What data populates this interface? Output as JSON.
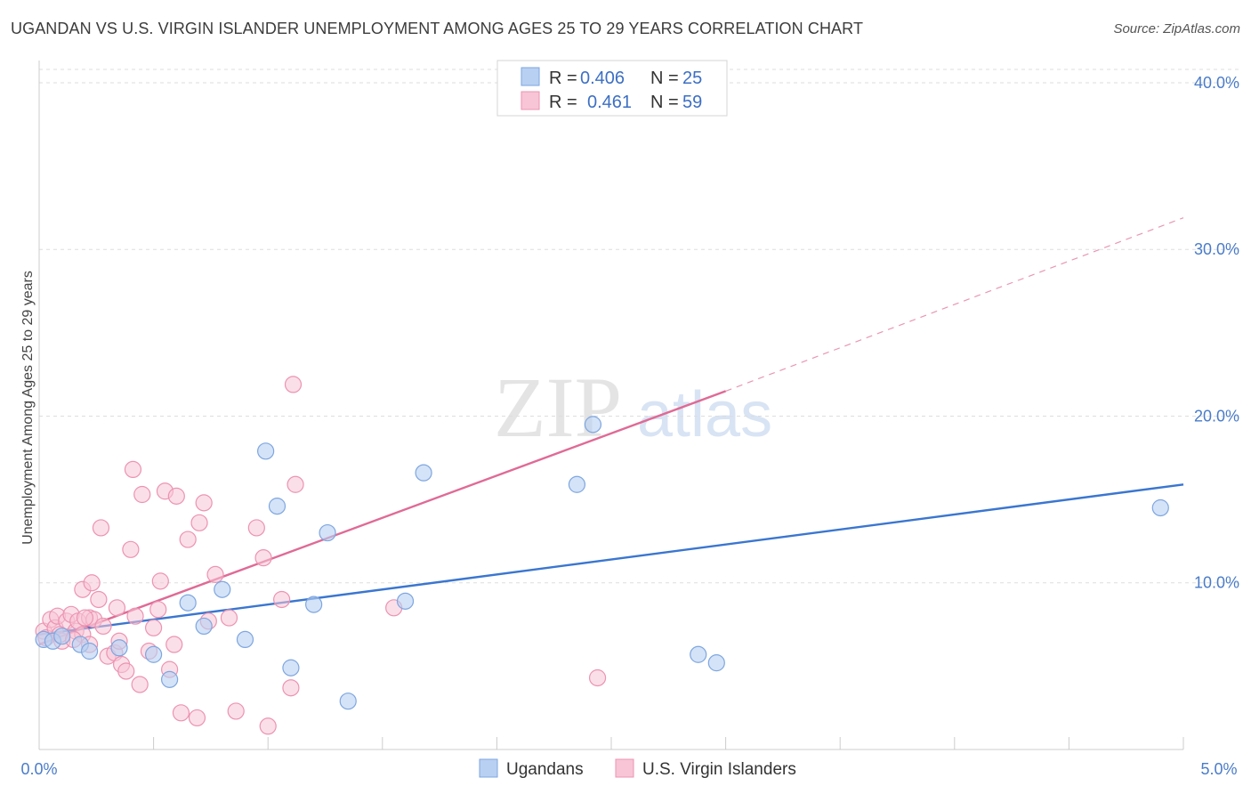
{
  "title": "UGANDAN VS U.S. VIRGIN ISLANDER UNEMPLOYMENT AMONG AGES 25 TO 29 YEARS CORRELATION CHART",
  "source": "Source: ZipAtlas.com",
  "watermark": {
    "zip": "ZIP",
    "atlas": "atlas"
  },
  "colors": {
    "blue_fill": "#b8d0f2",
    "blue_stroke": "#7ea6e0",
    "blue_line": "#3a76d0",
    "pink_fill": "#f8c5d6",
    "pink_stroke": "#ec93b2",
    "pink_line": "#e06a95",
    "tick": "#4a7cc9",
    "grid": "#dddddd"
  },
  "legend": {
    "rows": [
      {
        "r_label": "R =",
        "r_value": "0.406",
        "n_label": "N =",
        "n_value": "25"
      },
      {
        "r_label": "R =",
        "r_value": "0.461",
        "n_label": "N =",
        "n_value": "59"
      }
    ]
  },
  "chart_data": {
    "type": "scatter",
    "title": "UGANDAN VS U.S. VIRGIN ISLANDER UNEMPLOYMENT AMONG AGES 25 TO 29 YEARS CORRELATION CHART",
    "xlabel": "",
    "ylabel": "Unemployment Among Ages 25 to 29 years",
    "xlim": [
      0,
      5
    ],
    "ylim": [
      0,
      40.8
    ],
    "x_tick_labels": [
      "0.0%",
      "5.0%"
    ],
    "y_ticks": [
      10,
      20,
      30,
      40
    ],
    "y_tick_labels": [
      "10.0%",
      "20.0%",
      "30.0%",
      "40.0%"
    ],
    "grid": true,
    "legend_position": "top-center",
    "series": [
      {
        "name": "Ugandans",
        "color": "blue",
        "R": 0.406,
        "N": 25,
        "trend": {
          "x0": 0,
          "y0": 6.9,
          "x1": 5,
          "y1": 15.9
        },
        "points": [
          [
            0.02,
            6.6
          ],
          [
            0.06,
            6.5
          ],
          [
            0.1,
            6.8
          ],
          [
            0.18,
            6.3
          ],
          [
            0.22,
            5.9
          ],
          [
            0.35,
            6.1
          ],
          [
            0.5,
            5.7
          ],
          [
            0.57,
            4.2
          ],
          [
            0.65,
            8.8
          ],
          [
            0.72,
            7.4
          ],
          [
            0.8,
            9.6
          ],
          [
            0.9,
            6.6
          ],
          [
            0.99,
            17.9
          ],
          [
            1.04,
            14.6
          ],
          [
            1.1,
            4.9
          ],
          [
            1.2,
            8.7
          ],
          [
            1.26,
            13.0
          ],
          [
            1.35,
            2.9
          ],
          [
            1.6,
            8.9
          ],
          [
            1.68,
            16.6
          ],
          [
            2.35,
            15.9
          ],
          [
            2.42,
            19.5
          ],
          [
            2.88,
            5.7
          ],
          [
            2.96,
            5.2
          ],
          [
            4.9,
            14.5
          ]
        ]
      },
      {
        "name": "U.S. Virgin Islanders",
        "color": "pink",
        "R": 0.461,
        "N": 59,
        "trend": {
          "x0": 0,
          "y0": 6.3,
          "x1": 3.0,
          "y1": 21.5,
          "dash_to_x": 5,
          "dash_to_y": 31.9
        },
        "points": [
          [
            0.02,
            7.1
          ],
          [
            0.03,
            6.7
          ],
          [
            0.05,
            7.8
          ],
          [
            0.07,
            7.3
          ],
          [
            0.08,
            8.0
          ],
          [
            0.1,
            6.5
          ],
          [
            0.12,
            7.7
          ],
          [
            0.14,
            8.1
          ],
          [
            0.16,
            7.1
          ],
          [
            0.17,
            7.7
          ],
          [
            0.19,
            6.9
          ],
          [
            0.19,
            9.6
          ],
          [
            0.22,
            7.9
          ],
          [
            0.22,
            6.3
          ],
          [
            0.23,
            10.0
          ],
          [
            0.24,
            7.8
          ],
          [
            0.26,
            9.0
          ],
          [
            0.27,
            13.3
          ],
          [
            0.28,
            7.4
          ],
          [
            0.3,
            5.6
          ],
          [
            0.33,
            5.8
          ],
          [
            0.34,
            8.5
          ],
          [
            0.35,
            6.5
          ],
          [
            0.36,
            5.1
          ],
          [
            0.38,
            4.7
          ],
          [
            0.4,
            12.0
          ],
          [
            0.41,
            16.8
          ],
          [
            0.42,
            8.0
          ],
          [
            0.44,
            3.9
          ],
          [
            0.45,
            15.3
          ],
          [
            0.48,
            5.9
          ],
          [
            0.5,
            7.3
          ],
          [
            0.52,
            8.4
          ],
          [
            0.53,
            10.1
          ],
          [
            0.55,
            15.5
          ],
          [
            0.57,
            4.8
          ],
          [
            0.59,
            6.3
          ],
          [
            0.6,
            15.2
          ],
          [
            0.62,
            2.2
          ],
          [
            0.65,
            12.6
          ],
          [
            0.69,
            1.9
          ],
          [
            0.7,
            13.6
          ],
          [
            0.72,
            14.8
          ],
          [
            0.74,
            7.7
          ],
          [
            0.77,
            10.5
          ],
          [
            0.83,
            7.9
          ],
          [
            0.86,
            2.3
          ],
          [
            0.95,
            13.3
          ],
          [
            0.98,
            11.5
          ],
          [
            1.0,
            1.4
          ],
          [
            1.06,
            9.0
          ],
          [
            1.1,
            3.7
          ],
          [
            1.11,
            21.9
          ],
          [
            1.12,
            15.9
          ],
          [
            1.55,
            8.5
          ],
          [
            2.44,
            4.3
          ],
          [
            0.09,
            6.9
          ],
          [
            0.15,
            6.6
          ],
          [
            0.2,
            7.9
          ]
        ]
      }
    ]
  },
  "bottom_legend": {
    "ugandans": "Ugandans",
    "virgin_islanders": "U.S. Virgin Islanders"
  }
}
